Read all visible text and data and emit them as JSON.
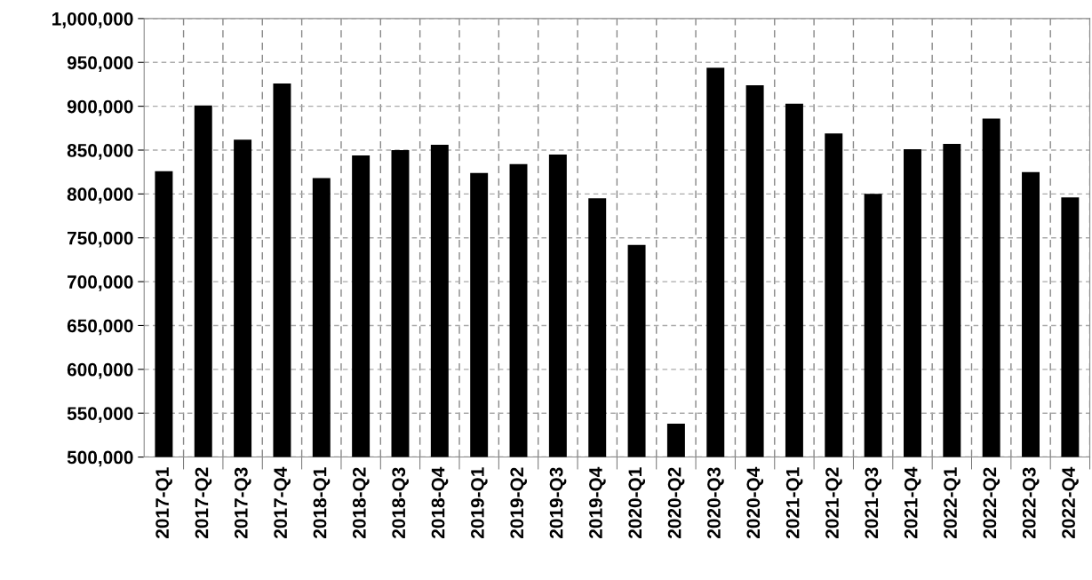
{
  "chart_data": {
    "type": "bar",
    "categories": [
      "2017-Q1",
      "2017-Q2",
      "2017-Q3",
      "2017-Q4",
      "2018-Q1",
      "2018-Q2",
      "2018-Q3",
      "2018-Q4",
      "2019-Q1",
      "2019-Q2",
      "2019-Q3",
      "2019-Q4",
      "2020-Q1",
      "2020-Q2",
      "2020-Q3",
      "2020-Q4",
      "2021-Q1",
      "2021-Q2",
      "2021-Q3",
      "2021-Q4",
      "2022-Q1",
      "2022-Q2",
      "2022-Q3",
      "2022-Q4"
    ],
    "values": [
      826000,
      901000,
      862000,
      926000,
      818000,
      844000,
      850000,
      856000,
      824000,
      834000,
      845000,
      795000,
      742000,
      538000,
      944000,
      924000,
      903000,
      869000,
      800000,
      851000,
      857000,
      886000,
      825000,
      796000
    ],
    "color": "#000000",
    "ylim": [
      500000,
      1000000
    ],
    "yticks": [
      {
        "value": 500000,
        "label": "500,000"
      },
      {
        "value": 550000,
        "label": "550,000"
      },
      {
        "value": 600000,
        "label": "600,000"
      },
      {
        "value": 650000,
        "label": "650,000"
      },
      {
        "value": 700000,
        "label": "700,000"
      },
      {
        "value": 750000,
        "label": "750,000"
      },
      {
        "value": 800000,
        "label": "800,000"
      },
      {
        "value": 850000,
        "label": "850,000"
      },
      {
        "value": 900000,
        "label": "900,000"
      },
      {
        "value": 950000,
        "label": "950,000"
      },
      {
        "value": 1000000,
        "label": "1,000,000"
      }
    ],
    "grid": true
  }
}
